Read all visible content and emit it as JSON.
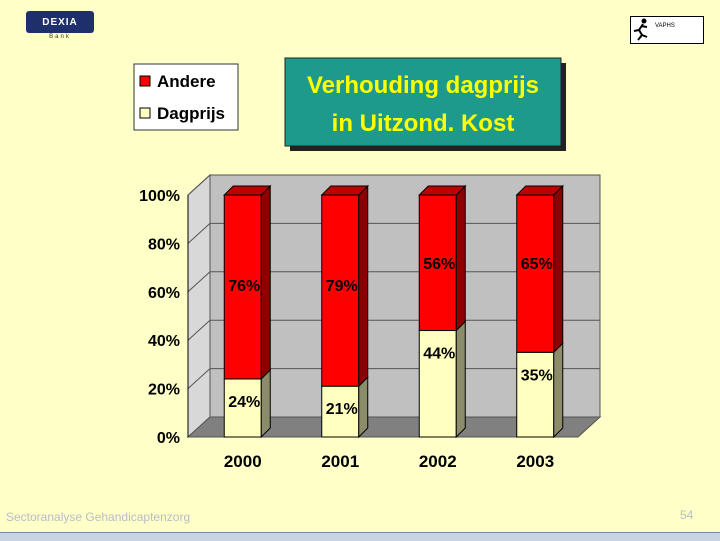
{
  "logos": {
    "dexia": "DEXIA",
    "dexia_sub": "Bank",
    "vaphs": "VAPHS"
  },
  "footer": {
    "text": "Sectoranalyse Gehandicaptenzorg",
    "page": "54"
  },
  "chart_data": {
    "type": "bar",
    "stacked": true,
    "three_d": true,
    "title": "Verhouding dagprijs in Uitzond. Kost",
    "title_lines": [
      "Verhouding dagprijs",
      "in Uitzond. Kost"
    ],
    "categories": [
      "2000",
      "2001",
      "2002",
      "2003"
    ],
    "series": [
      {
        "name": "Dagprijs",
        "values": [
          24,
          21,
          44,
          35
        ],
        "labels": [
          "24%",
          "21%",
          "44%",
          "35%"
        ],
        "color": "#FFFFC0"
      },
      {
        "name": "Andere",
        "values": [
          76,
          79,
          56,
          65
        ],
        "labels": [
          "76%",
          "79%",
          "56%",
          "65%"
        ],
        "color": "#FF0000"
      }
    ],
    "legend_order": [
      "Andere",
      "Dagprijs"
    ],
    "legend_placement": "top-left",
    "ylim": [
      0,
      100
    ],
    "yticks": [
      "0%",
      "20%",
      "40%",
      "60%",
      "80%",
      "100%"
    ],
    "grid": true,
    "colors": {
      "title_box": "#1E9A8C",
      "title_text": "#FFFF00",
      "wall": "#C0C0C0",
      "floor": "#808080"
    }
  }
}
